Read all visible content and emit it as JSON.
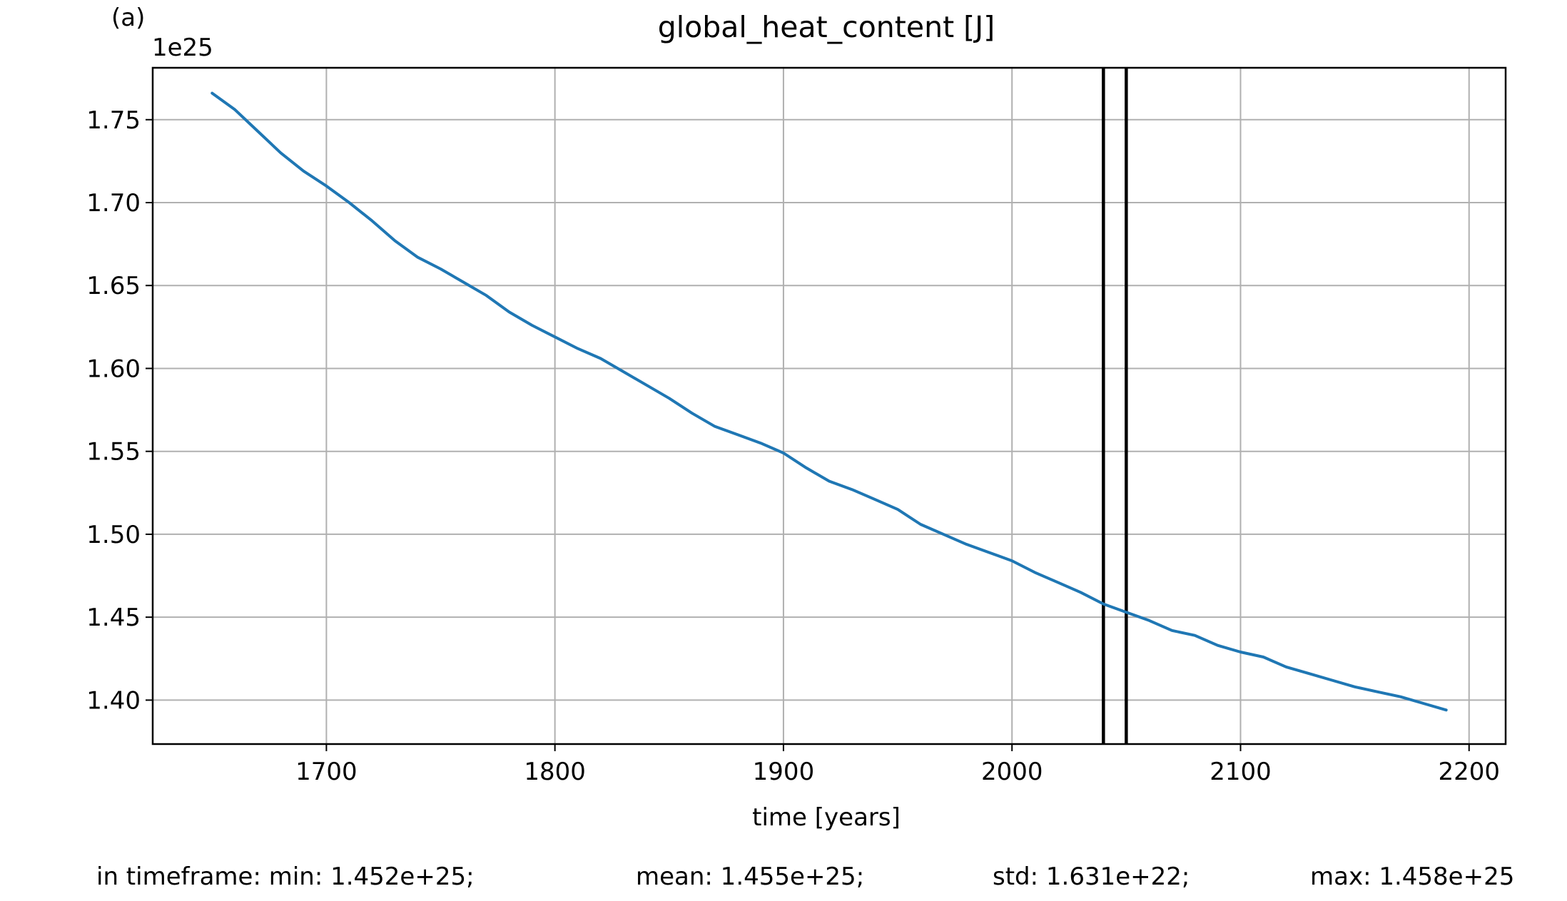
{
  "chart_data": {
    "type": "line",
    "panel_label": "(a)",
    "title": "global_heat_content [J]",
    "xlabel": "time [years]",
    "ylabel": "",
    "y_offset_label": "1e25",
    "xlim": [
      1624,
      2216
    ],
    "ylim": [
      1.3735,
      1.7813
    ],
    "x_ticks": [
      1700,
      1800,
      1900,
      2000,
      2100,
      2200
    ],
    "x_tick_labels": [
      "1700",
      "1800",
      "1900",
      "2000",
      "2100",
      "2200"
    ],
    "y_ticks": [
      1.4,
      1.45,
      1.5,
      1.55,
      1.6,
      1.65,
      1.7,
      1.75
    ],
    "y_tick_labels": [
      "1.40",
      "1.45",
      "1.50",
      "1.55",
      "1.60",
      "1.65",
      "1.70",
      "1.75"
    ],
    "grid": true,
    "line_color": "#1f77b4",
    "vlines": [
      2040,
      2050
    ],
    "vline_color": "#000000",
    "series": [
      {
        "name": "",
        "x": [
          1650,
          1660,
          1670,
          1680,
          1690,
          1700,
          1710,
          1720,
          1730,
          1740,
          1750,
          1760,
          1770,
          1780,
          1790,
          1800,
          1810,
          1820,
          1830,
          1840,
          1850,
          1860,
          1870,
          1880,
          1890,
          1900,
          1910,
          1920,
          1930,
          1940,
          1950,
          1960,
          1970,
          1980,
          1990,
          2000,
          2010,
          2020,
          2030,
          2040,
          2050,
          2060,
          2070,
          2080,
          2090,
          2100,
          2110,
          2120,
          2130,
          2140,
          2150,
          2160,
          2170,
          2180,
          2190
        ],
        "y": [
          1.766,
          1.756,
          1.743,
          1.73,
          1.719,
          1.71,
          1.7,
          1.689,
          1.677,
          1.667,
          1.66,
          1.652,
          1.644,
          1.634,
          1.626,
          1.619,
          1.612,
          1.606,
          1.598,
          1.59,
          1.582,
          1.573,
          1.565,
          1.56,
          1.555,
          1.549,
          1.54,
          1.532,
          1.527,
          1.521,
          1.515,
          1.506,
          1.5,
          1.494,
          1.489,
          1.484,
          1.477,
          1.471,
          1.465,
          1.458,
          1.453,
          1.448,
          1.442,
          1.439,
          1.433,
          1.429,
          1.426,
          1.42,
          1.416,
          1.412,
          1.408,
          1.405,
          1.402,
          1.398,
          1.394
        ]
      }
    ]
  },
  "stats": {
    "min": "in timeframe: min: 1.452e+25;",
    "mean": "mean: 1.455e+25;",
    "std": "std: 1.631e+22;",
    "max": "max: 1.458e+25"
  }
}
